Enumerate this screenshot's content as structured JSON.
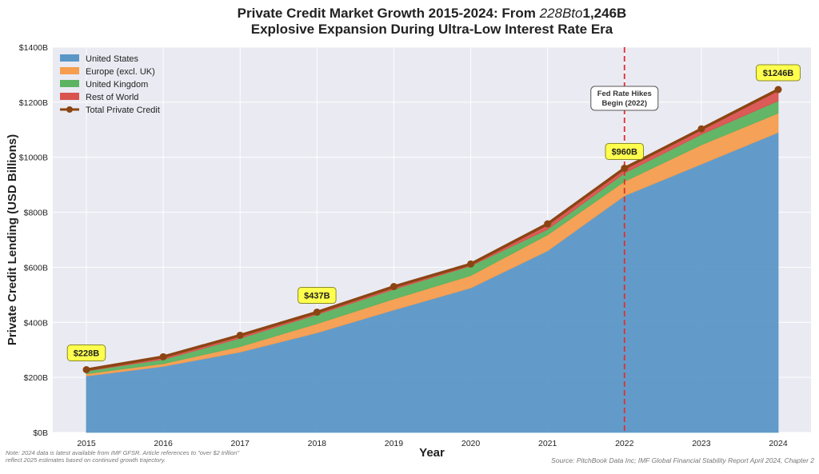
{
  "chart_data": {
    "type": "area",
    "stacked": true,
    "title_line1_prefix": "Private Credit Market Growth 2015-2024: From ",
    "title_line1_math": "228Bto",
    "title_line1_suffix": "1,246B",
    "title_line2": "Explosive Expansion During Ultra-Low Interest Rate Era",
    "xlabel": "Year",
    "ylabel": "Private Credit Lending (USD Billions)",
    "ylim": [
      0,
      1400
    ],
    "yticks": [
      0,
      200,
      400,
      600,
      800,
      1000,
      1200,
      1400
    ],
    "ytick_labels": [
      "$0B",
      "$200B",
      "$400B",
      "$600B",
      "$800B",
      "$1000B",
      "$1200B",
      "$1400B"
    ],
    "x": [
      "2015",
      "2016",
      "2017",
      "2018",
      "2019",
      "2020",
      "2021",
      "2022",
      "2023",
      "2024"
    ],
    "grid": true,
    "legend_placement": "top-left",
    "series": [
      {
        "name": "United States",
        "color": "#5b97c6",
        "values": [
          205,
          240,
          292,
          362,
          445,
          525,
          660,
          860,
          975,
          1090
        ]
      },
      {
        "name": "Europe (excl. UK)",
        "color": "#f69d4e",
        "values": [
          8,
          10,
          20,
          33,
          40,
          45,
          58,
          52,
          70,
          70
        ]
      },
      {
        "name": "United Kingdom",
        "color": "#5cb360",
        "values": [
          10,
          15,
          30,
          33,
          35,
          35,
          20,
          30,
          38,
          45
        ]
      },
      {
        "name": "Rest of World",
        "color": "#d9534f",
        "values": [
          5,
          10,
          11,
          9,
          10,
          7,
          20,
          18,
          20,
          41
        ]
      }
    ],
    "total": {
      "name": "Total Private Credit",
      "color": "#8b4513",
      "values": [
        228,
        275,
        353,
        437,
        530,
        612,
        758,
        960,
        1103,
        1246
      ]
    },
    "data_labels": [
      {
        "x": "2015",
        "text": "$228B"
      },
      {
        "x": "2018",
        "text": "$437B"
      },
      {
        "x": "2022",
        "text": "$960B"
      },
      {
        "x": "2024",
        "text": "$1246B"
      }
    ],
    "vline": {
      "x": "2022",
      "color": "#e03030",
      "text_line1": "Fed Rate Hikes",
      "text_line2": "Begin (2022)"
    },
    "note_line1": "Note: 2024 data is latest available from IMF GFSR. Article references to \"over $2 trillion\"",
    "note_line2": "reflect 2025 estimates based on continued growth trajectory.",
    "source": "Source: PitchBook Data Inc; IMF Global Financial Stability Report April 2024, Chapter 2"
  }
}
